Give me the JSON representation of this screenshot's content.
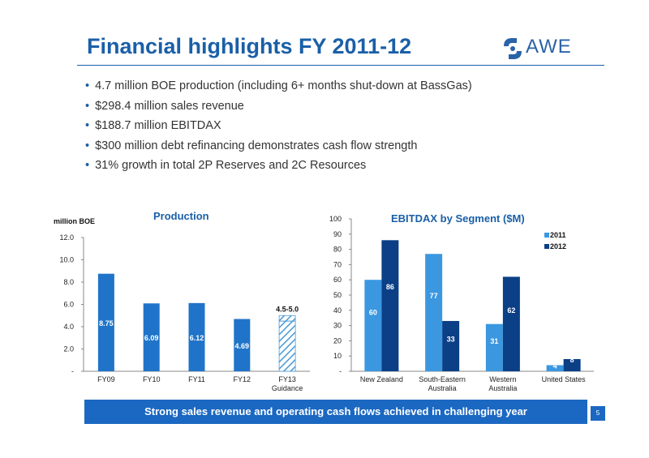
{
  "slide": {
    "title": "Financial highlights FY 2011-12",
    "logo_text": "AWE",
    "bullets": [
      "4.7 million BOE production (including 6+ months shut-down at BassGas)",
      "$298.4 million sales revenue",
      "$188.7 million EBITDAX",
      "$300 million debt refinancing demonstrates cash flow strength",
      "31% growth in total 2P Reserves and 2C Resources"
    ],
    "banner": "Strong sales revenue and operating cash flows achieved in challenging year",
    "page_number": "5"
  },
  "chart_data": [
    {
      "type": "bar",
      "title": "Production",
      "ylabel": "million BOE",
      "ylim": [
        0,
        12
      ],
      "yticks": [
        "-",
        "2.0",
        "4.0",
        "6.0",
        "8.0",
        "10.0",
        "12.0"
      ],
      "categories": [
        "FY09",
        "FY10",
        "FY11",
        "FY12",
        "FY13 Guidance"
      ],
      "values": [
        8.75,
        6.09,
        6.12,
        4.69,
        null
      ],
      "data_labels": [
        "8.75",
        "6.09",
        "6.12",
        "4.69",
        ""
      ],
      "guidance": {
        "category": "FY13 Guidance",
        "low": 4.5,
        "high": 5.0,
        "label": "4.5-5.0"
      },
      "colors": {
        "bar": "#1f74c9",
        "hatch": "#4a9ad8"
      },
      "grid": false
    },
    {
      "type": "bar",
      "title": "EBITDAX by Segment ($M)",
      "ylim": [
        0,
        100
      ],
      "yticks": [
        "-",
        "10",
        "20",
        "30",
        "40",
        "50",
        "60",
        "70",
        "80",
        "90",
        "100"
      ],
      "categories": [
        "New Zealand",
        "South-Eastern Australia",
        "Western Australia",
        "United States"
      ],
      "category_lines": [
        [
          "New Zealand"
        ],
        [
          "South-Eastern",
          "Australia"
        ],
        [
          "Western",
          "Australia"
        ],
        [
          "United States"
        ]
      ],
      "series": [
        {
          "name": "2011",
          "values": [
            60,
            77,
            31,
            4
          ],
          "color": "#3b97e0"
        },
        {
          "name": "2012",
          "values": [
            86,
            33,
            62,
            8
          ],
          "color": "#0b3f86"
        }
      ],
      "legend": "top-right",
      "grid": false
    }
  ]
}
